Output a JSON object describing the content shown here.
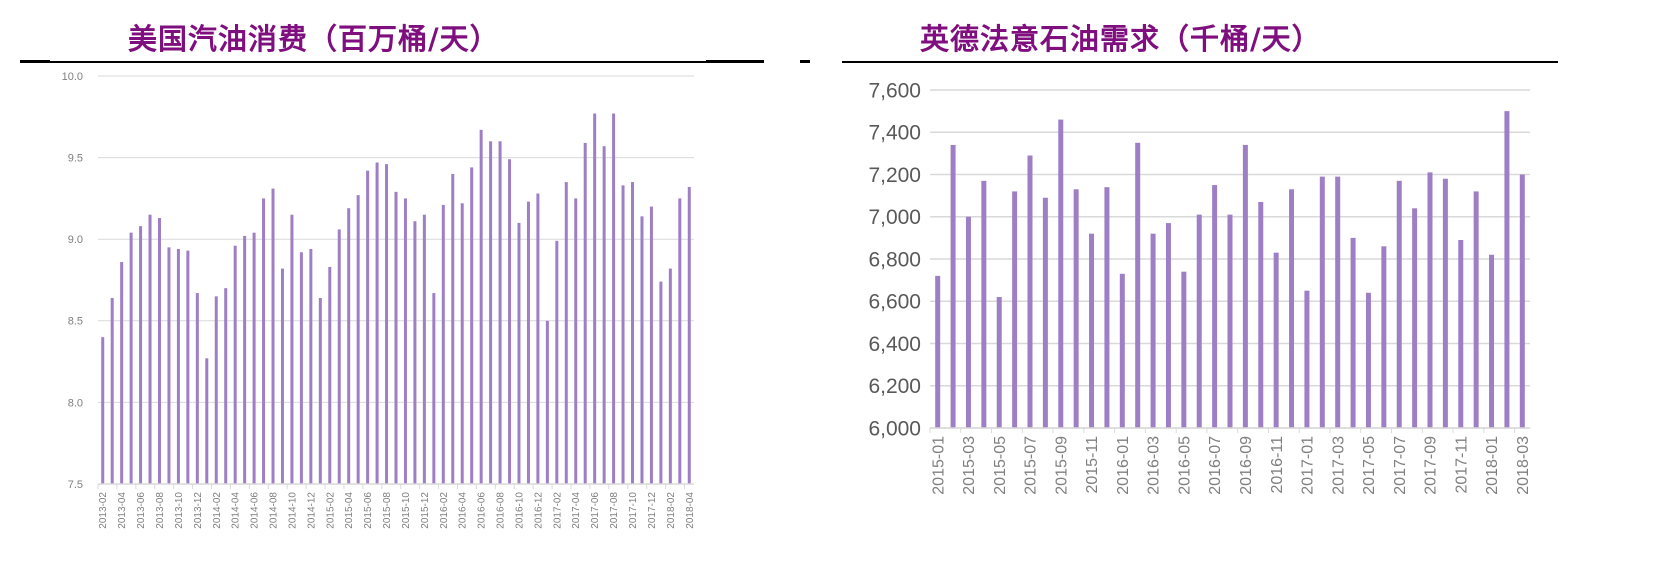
{
  "left_panel": {
    "title": "美国汽油消费（百万桶/天）"
  },
  "right_panel": {
    "title": "英德法意石油需求（千桶/天）"
  },
  "colors": {
    "bar": "#9e7fc6",
    "title": "#7f0f7e",
    "grid": "#d9d9d9",
    "axis_text": "#7f7f7f"
  },
  "chart_data": [
    {
      "type": "bar",
      "title": "美国汽油消费（百万桶/天）",
      "xlabel": "",
      "ylabel": "",
      "ylim": [
        7.5,
        10.0
      ],
      "yticks": [
        "7.5",
        "8.0",
        "8.5",
        "9.0",
        "9.5",
        "10.0"
      ],
      "grid": true,
      "xtick_labels": [
        "2013-02",
        "2013-04",
        "2013-06",
        "2013-08",
        "2013-10",
        "2013-12",
        "2014-02",
        "2014-04",
        "2014-06",
        "2014-08",
        "2014-10",
        "2014-12",
        "2015-02",
        "2015-04",
        "2015-06",
        "2015-08",
        "2015-10",
        "2015-12",
        "2016-02",
        "2016-04",
        "2016-06",
        "2016-08",
        "2016-10",
        "2016-12",
        "2017-02",
        "2017-04",
        "2017-06",
        "2017-08",
        "2017-10",
        "2017-12",
        "2018-02",
        "2018-04"
      ],
      "categories": [
        "2013-02",
        "2013-03",
        "2013-04",
        "2013-05",
        "2013-06",
        "2013-07",
        "2013-08",
        "2013-09",
        "2013-10",
        "2013-11",
        "2013-12",
        "2014-01",
        "2014-02",
        "2014-03",
        "2014-04",
        "2014-05",
        "2014-06",
        "2014-07",
        "2014-08",
        "2014-09",
        "2014-10",
        "2014-11",
        "2014-12",
        "2015-01",
        "2015-02",
        "2015-03",
        "2015-04",
        "2015-05",
        "2015-06",
        "2015-07",
        "2015-08",
        "2015-09",
        "2015-10",
        "2015-11",
        "2015-12",
        "2016-01",
        "2016-02",
        "2016-03",
        "2016-04",
        "2016-05",
        "2016-06",
        "2016-07",
        "2016-08",
        "2016-09",
        "2016-10",
        "2016-11",
        "2016-12",
        "2017-01",
        "2017-02",
        "2017-03",
        "2017-04",
        "2017-05",
        "2017-06",
        "2017-07",
        "2017-08",
        "2017-09",
        "2017-10",
        "2017-11",
        "2017-12",
        "2018-01",
        "2018-02",
        "2018-03",
        "2018-04"
      ],
      "values": [
        8.4,
        8.64,
        8.86,
        9.04,
        9.08,
        9.15,
        9.13,
        8.95,
        8.94,
        8.93,
        8.67,
        8.27,
        8.65,
        8.7,
        8.96,
        9.02,
        9.04,
        9.25,
        9.31,
        8.82,
        9.15,
        8.92,
        8.94,
        8.64,
        8.83,
        9.06,
        9.19,
        9.27,
        9.42,
        9.47,
        9.46,
        9.29,
        9.25,
        9.11,
        9.15,
        8.67,
        9.21,
        9.4,
        9.22,
        9.44,
        9.67,
        9.6,
        9.6,
        9.49,
        9.1,
        9.23,
        9.28,
        8.5,
        8.99,
        9.35,
        9.25,
        9.59,
        9.77,
        9.57,
        9.77,
        9.33,
        9.35,
        9.14,
        9.2,
        8.74,
        8.82,
        9.25,
        9.32
      ]
    },
    {
      "type": "bar",
      "title": "英德法意石油需求（千桶/天）",
      "xlabel": "",
      "ylabel": "",
      "ylim": [
        6000,
        7600
      ],
      "yticks": [
        "6,000",
        "6,200",
        "6,400",
        "6,600",
        "6,800",
        "7,000",
        "7,200",
        "7,400",
        "7,600"
      ],
      "grid": true,
      "xtick_labels": [
        "2015-01",
        "2015-03",
        "2015-05",
        "2015-07",
        "2015-09",
        "2015-11",
        "2016-01",
        "2016-03",
        "2016-05",
        "2016-07",
        "2016-09",
        "2016-11",
        "2017-01",
        "2017-03",
        "2017-05",
        "2017-07",
        "2017-09",
        "2017-11",
        "2018-01",
        "2018-03"
      ],
      "categories": [
        "2015-01",
        "2015-02",
        "2015-03",
        "2015-04",
        "2015-05",
        "2015-06",
        "2015-07",
        "2015-08",
        "2015-09",
        "2015-10",
        "2015-11",
        "2015-12",
        "2016-01",
        "2016-02",
        "2016-03",
        "2016-04",
        "2016-05",
        "2016-06",
        "2016-07",
        "2016-08",
        "2016-09",
        "2016-10",
        "2016-11",
        "2016-12",
        "2017-01",
        "2017-02",
        "2017-03",
        "2017-04",
        "2017-05",
        "2017-06",
        "2017-07",
        "2017-08",
        "2017-09",
        "2017-10",
        "2017-11",
        "2017-12",
        "2018-01",
        "2018-02",
        "2018-03"
      ],
      "values": [
        6720,
        7340,
        7000,
        7170,
        6620,
        7120,
        7290,
        7090,
        7460,
        7130,
        6920,
        7140,
        6730,
        7350,
        6920,
        6970,
        6740,
        7010,
        7150,
        7010,
        7340,
        7070,
        6830,
        7130,
        6650,
        7190,
        7190,
        6900,
        6640,
        6860,
        7170,
        7040,
        7210,
        7180,
        6890,
        7120,
        6820,
        7500,
        7200
      ]
    }
  ]
}
